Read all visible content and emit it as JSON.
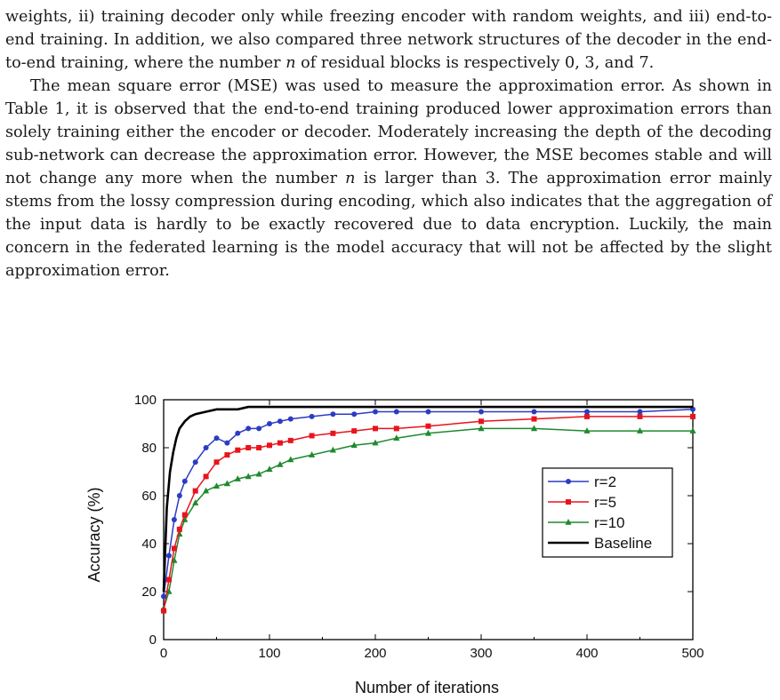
{
  "paragraphs": [
    {
      "indent": false,
      "parts": [
        "weights, ii) training decoder only while freezing encoder with random weights, and iii) end-to-end training. In addition, we also compared three network structures of the decoder in the end-to-end training, where the number ",
        {
          "i": "n"
        },
        " of residual blocks is respectively 0, 3, and 7."
      ]
    },
    {
      "indent": true,
      "parts": [
        "The mean square error (MSE) was used to measure the approximation error. As shown in Table 1, it is observed that the end-to-end training produced lower approximation errors than solely training either the encoder or decoder. Moderately increasing the depth of the decoding sub-network can decrease the approximation error. However, the MSE becomes stable and will not change any more when the number ",
        {
          "i": "n"
        },
        " is larger than 3. The approximation error mainly stems from the lossy compression during encoding, which also indicates that the aggregation of the input data is hardly to be exactly recovered due to data encryption. Luckily, the main concern in the federated learning is the model accuracy that will not be affected by the slight approximation error."
      ]
    }
  ],
  "chart_data": {
    "type": "line",
    "xlabel": "Number of  iterations",
    "ylabel": "Accuracy (%)",
    "xlim": [
      0,
      500
    ],
    "ylim": [
      0,
      100
    ],
    "xticks": [
      0,
      100,
      200,
      300,
      400,
      500
    ],
    "yticks": [
      0,
      20,
      40,
      60,
      80,
      100
    ],
    "legend_position": "right",
    "series": [
      {
        "name": "r=2",
        "color": "#2b3cc4",
        "marker": "circle",
        "x": [
          0,
          5,
          10,
          15,
          20,
          30,
          40,
          50,
          60,
          70,
          80,
          90,
          100,
          110,
          120,
          140,
          160,
          180,
          200,
          220,
          250,
          300,
          350,
          400,
          450,
          500
        ],
        "y": [
          18,
          35,
          50,
          60,
          66,
          74,
          80,
          84,
          82,
          86,
          88,
          88,
          90,
          91,
          92,
          93,
          94,
          94,
          95,
          95,
          95,
          95,
          95,
          95,
          95,
          96
        ]
      },
      {
        "name": "r=5",
        "color": "#e8141c",
        "marker": "square",
        "x": [
          0,
          5,
          10,
          15,
          20,
          30,
          40,
          50,
          60,
          70,
          80,
          90,
          100,
          110,
          120,
          140,
          160,
          180,
          200,
          220,
          250,
          300,
          350,
          400,
          450,
          500
        ],
        "y": [
          12,
          25,
          38,
          46,
          52,
          62,
          68,
          74,
          77,
          79,
          80,
          80,
          81,
          82,
          83,
          85,
          86,
          87,
          88,
          88,
          89,
          91,
          92,
          93,
          93,
          93
        ]
      },
      {
        "name": "r=10",
        "color": "#1e8a2e",
        "marker": "triangle",
        "x": [
          0,
          5,
          10,
          15,
          20,
          30,
          40,
          50,
          60,
          70,
          80,
          90,
          100,
          110,
          120,
          140,
          160,
          180,
          200,
          220,
          250,
          300,
          350,
          400,
          450,
          500
        ],
        "y": [
          13,
          20,
          33,
          44,
          50,
          57,
          62,
          64,
          65,
          67,
          68,
          69,
          71,
          73,
          75,
          77,
          79,
          81,
          82,
          84,
          86,
          88,
          88,
          87,
          87,
          87
        ]
      },
      {
        "name": "Baseline",
        "color": "#000000",
        "marker": "none",
        "x": [
          0,
          3,
          6,
          9,
          12,
          15,
          20,
          25,
          30,
          40,
          50,
          60,
          70,
          80,
          90,
          100,
          150,
          200,
          250,
          300,
          350,
          400,
          450,
          500
        ],
        "y": [
          20,
          55,
          70,
          78,
          84,
          88,
          91,
          93,
          94,
          95,
          96,
          96,
          96,
          97,
          97,
          97,
          97,
          97,
          97,
          97,
          97,
          97,
          97,
          97
        ]
      }
    ]
  }
}
